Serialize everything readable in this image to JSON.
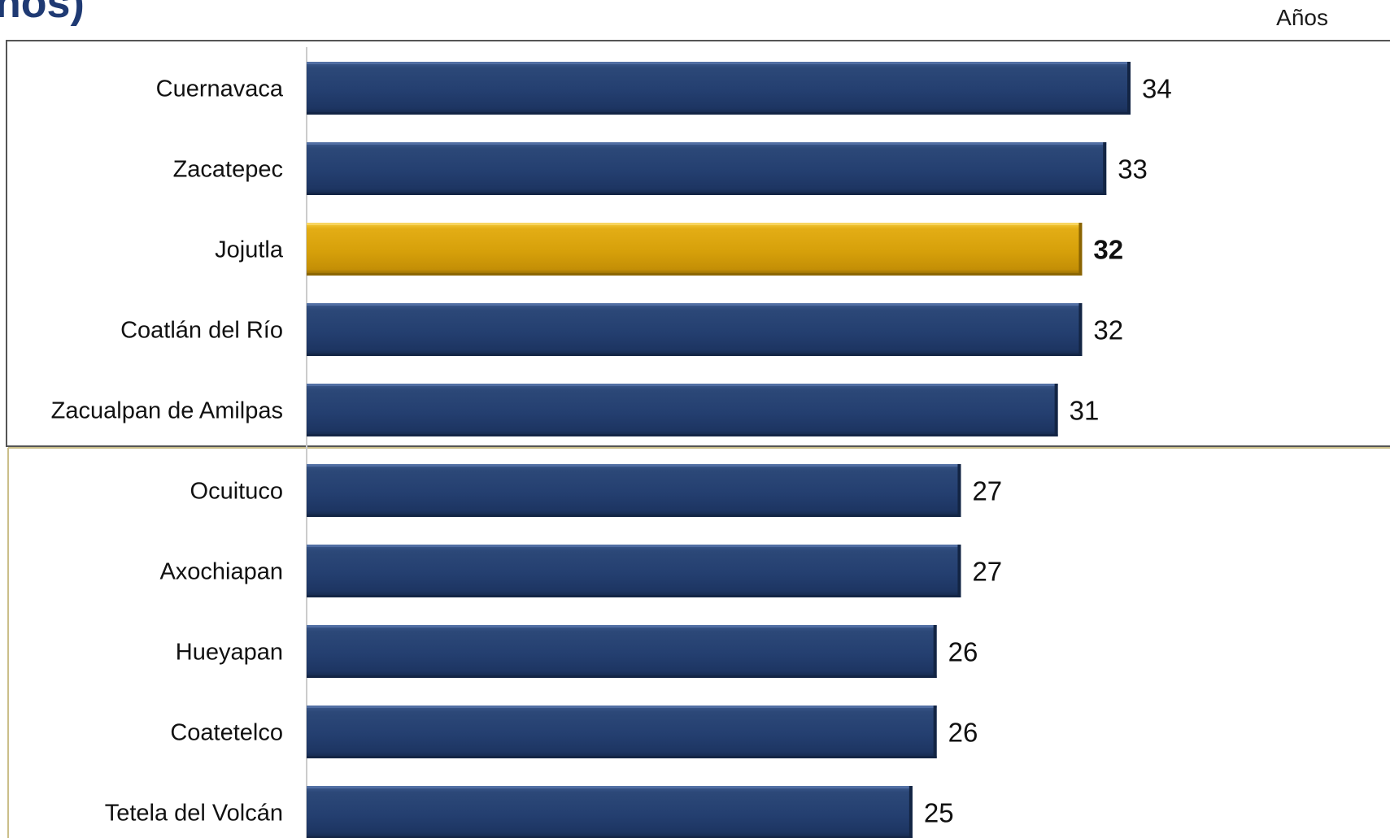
{
  "header": {
    "title_fragment": "ños)",
    "unit_label": "Años"
  },
  "colors": {
    "bar_default": "#243f70",
    "bar_highlight": "#d6a00a",
    "top_group_frame": "#555555",
    "bottom_group_frame": "#cbbf8a",
    "axis_line": "#cccccc"
  },
  "chart_data": {
    "type": "bar",
    "orientation": "horizontal",
    "categories": [
      "Cuernavaca",
      "Zacatepec",
      "Jojutla",
      "Coatlán del Río",
      "Zacualpan de Amilpas",
      "Ocuituco",
      "Axochiapan",
      "Hueyapan",
      "Coatetelco",
      "Tetela del Volcán"
    ],
    "values": [
      34,
      33,
      32,
      32,
      31,
      27,
      27,
      26,
      26,
      25
    ],
    "value_labels": [
      "34",
      "33",
      "32",
      "32",
      "31",
      "27",
      "27",
      "26",
      "26",
      "25"
    ],
    "highlight_category": "Jojutla",
    "unit": "Años",
    "xlim": [
      0,
      34
    ],
    "grid": false,
    "legend": "none",
    "groups": [
      {
        "name": "top",
        "categories": [
          "Cuernavaca",
          "Zacatepec",
          "Jojutla",
          "Coatlán del Río",
          "Zacualpan de Amilpas"
        ]
      },
      {
        "name": "bottom",
        "categories": [
          "Ocuituco",
          "Axochiapan",
          "Hueyapan",
          "Coatetelco",
          "Tetela del Volcán"
        ]
      }
    ]
  }
}
